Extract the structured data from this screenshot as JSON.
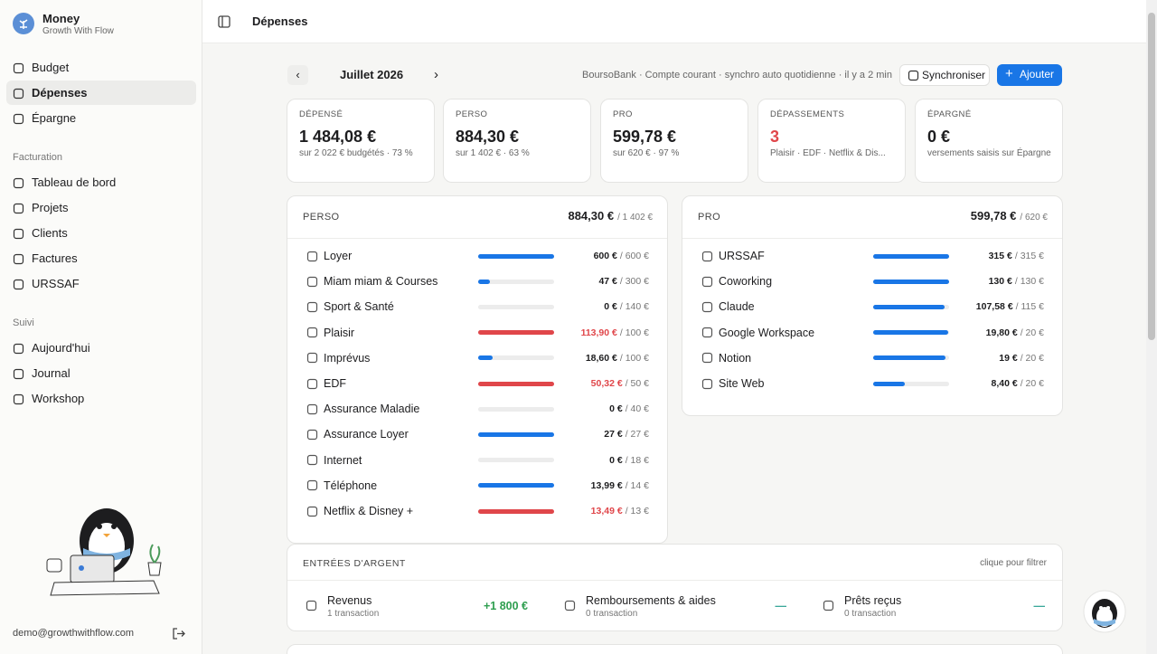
{
  "app": {
    "name": "Money",
    "tagline": "Growth With Flow"
  },
  "nav": [
    {
      "label": "Budget",
      "active": false
    },
    {
      "label": "Dépenses",
      "active": true
    },
    {
      "label": "Épargne",
      "active": false
    }
  ],
  "sections": [
    {
      "title": "Facturation",
      "items": [
        "Tableau de bord",
        "Projets",
        "Clients",
        "Factures",
        "URSSAF"
      ]
    },
    {
      "title": "Suivi",
      "items": [
        "Aujourd'hui",
        "Journal",
        "Workshop"
      ]
    }
  ],
  "user": {
    "email": "demo@growthwithflow.com"
  },
  "header": {
    "title": "Dépenses"
  },
  "toolbar": {
    "month": "Juillet 2026",
    "account": "BoursoBank · Compte courant · synchro auto quotidienne · il y a 2 min",
    "sync": "Synchroniser",
    "add": "Ajouter"
  },
  "colors": {
    "bar": "#1976e6",
    "over": "#e0464a"
  },
  "stats": [
    {
      "label": "DÉPENSÉ",
      "value": "1 484,08 €",
      "note": "sur 2 022 € budgétés · 73 %",
      "alert": false
    },
    {
      "label": "PERSO",
      "value": "884,30 €",
      "note": "sur 1 402 € · 63 %",
      "alert": false
    },
    {
      "label": "PRO",
      "value": "599,78 €",
      "note": "sur 620 € · 97 %",
      "alert": false
    },
    {
      "label": "DÉPASSEMENTS",
      "value": "3",
      "note": "Plaisir · EDF · Netflix & Dis...",
      "alert": true
    },
    {
      "label": "ÉPARGNÉ",
      "value": "0 €",
      "note": "versements saisis sur Épargne",
      "alert": false
    }
  ],
  "groups": [
    {
      "title": "PERSO",
      "total": "884,30 €",
      "budget": "/ 1 402 €",
      "rows": [
        {
          "label": "Loyer",
          "spent": "600 €",
          "budget": "/ 600 €",
          "progress": 100,
          "over": false
        },
        {
          "label": "Miam miam & Courses",
          "spent": "47 €",
          "budget": "/ 300 €",
          "progress": 16,
          "over": false
        },
        {
          "label": "Sport & Santé",
          "spent": "0 €",
          "budget": "/ 140 €",
          "progress": 0,
          "over": false
        },
        {
          "label": "Plaisir",
          "spent": "113,90 €",
          "budget": "/ 100 €",
          "progress": 100,
          "over": true
        },
        {
          "label": "Imprévus",
          "spent": "18,60 €",
          "budget": "/ 100 €",
          "progress": 19,
          "over": false
        },
        {
          "label": "EDF",
          "spent": "50,32 €",
          "budget": "/ 50 €",
          "progress": 100,
          "over": true
        },
        {
          "label": "Assurance Maladie",
          "spent": "0 €",
          "budget": "/ 40 €",
          "progress": 0,
          "over": false
        },
        {
          "label": "Assurance Loyer",
          "spent": "27 €",
          "budget": "/ 27 €",
          "progress": 100,
          "over": false
        },
        {
          "label": "Internet",
          "spent": "0 €",
          "budget": "/ 18 €",
          "progress": 0,
          "over": false
        },
        {
          "label": "Téléphone",
          "spent": "13,99 €",
          "budget": "/ 14 €",
          "progress": 100,
          "over": false
        },
        {
          "label": "Netflix & Disney +",
          "spent": "13,49 €",
          "budget": "/ 13 €",
          "progress": 100,
          "over": true
        }
      ]
    },
    {
      "title": "PRO",
      "total": "599,78 €",
      "budget": "/ 620 €",
      "rows": [
        {
          "label": "URSSAF",
          "spent": "315 €",
          "budget": "/ 315 €",
          "progress": 100,
          "over": false
        },
        {
          "label": "Coworking",
          "spent": "130 €",
          "budget": "/ 130 €",
          "progress": 100,
          "over": false
        },
        {
          "label": "Claude",
          "spent": "107,58 €",
          "budget": "/ 115 €",
          "progress": 94,
          "over": false
        },
        {
          "label": "Google Workspace",
          "spent": "19,80 €",
          "budget": "/ 20 €",
          "progress": 99,
          "over": false
        },
        {
          "label": "Notion",
          "spent": "19 €",
          "budget": "/ 20 €",
          "progress": 95,
          "over": false
        },
        {
          "label": "Site Web",
          "spent": "8,40 €",
          "budget": "/ 20 €",
          "progress": 42,
          "over": false
        }
      ]
    }
  ],
  "income": {
    "title": "ENTRÉES D'ARGENT",
    "hint": "clique pour filtrer",
    "items": [
      {
        "label": "Revenus",
        "count": "1 transaction",
        "amount": "+1 800 €"
      },
      {
        "label": "Remboursements & aides",
        "count": "0 transaction",
        "amount": "—"
      },
      {
        "label": "Prêts reçus",
        "count": "0 transaction",
        "amount": "—"
      }
    ]
  }
}
